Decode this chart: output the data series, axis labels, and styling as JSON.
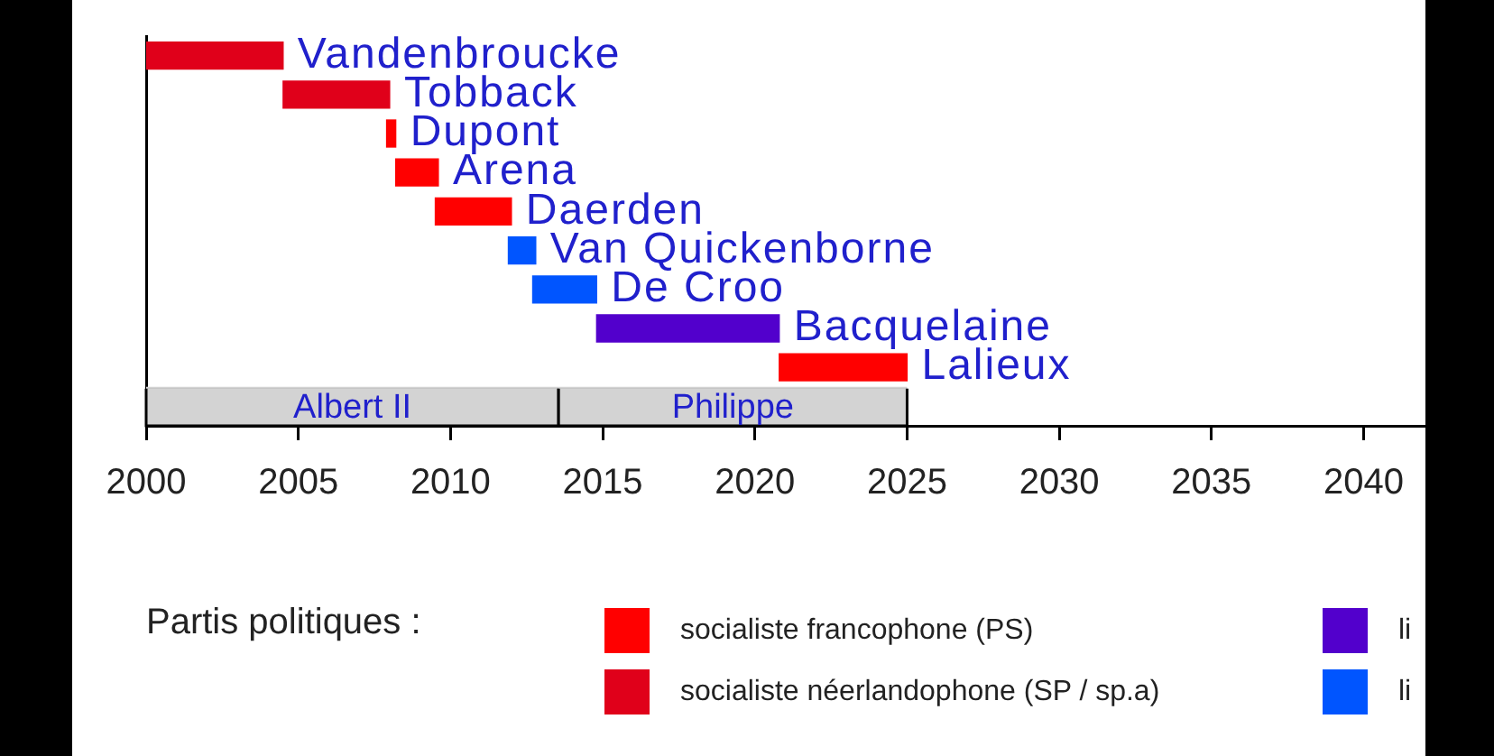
{
  "chart_data": {
    "type": "bar",
    "orientation": "horizontal",
    "categories": [
      "Vandenbroucke",
      "Tobback",
      "Dupont",
      "Arena",
      "Daerden",
      "Van Quickenborne",
      "De Croo",
      "Bacquelaine",
      "Lalieux"
    ],
    "series": [
      {
        "name": "socialiste francophone (PS)",
        "color": "#ff0000",
        "base": [
          null,
          null,
          2007.9,
          2008.2,
          2009.5,
          null,
          null,
          null,
          2020.8
        ],
        "values": [
          null,
          null,
          0.3,
          1.4,
          2.5,
          null,
          null,
          null,
          4.2
        ]
      },
      {
        "name": "socialiste néerlandophone (SP / sp.a)",
        "color": "#e0001a",
        "base": [
          2000,
          2004.5,
          null,
          null,
          null,
          null,
          null,
          null,
          null
        ],
        "values": [
          4.5,
          3.5,
          null,
          null,
          null,
          null,
          null,
          null,
          null
        ]
      },
      {
        "name": "li",
        "color": "#5200cc",
        "base": [
          null,
          null,
          null,
          null,
          null,
          null,
          null,
          2014.8,
          null
        ],
        "values": [
          null,
          null,
          null,
          null,
          null,
          null,
          null,
          6.0,
          null
        ]
      },
      {
        "name": "li",
        "color": "#0055ff",
        "base": [
          null,
          null,
          null,
          null,
          null,
          2011.9,
          2012.7,
          null,
          null
        ],
        "values": [
          null,
          null,
          null,
          null,
          null,
          0.9,
          2.1,
          null,
          null
        ]
      }
    ],
    "xlim": [
      2000,
      2042
    ],
    "xticks": [
      2000,
      2005,
      2010,
      2015,
      2020,
      2025,
      2030,
      2035,
      2040
    ],
    "bands": [
      {
        "axis": "x",
        "from": 2000,
        "to": 2013.55,
        "label": "Albert II",
        "color": "#d3d3d3"
      },
      {
        "axis": "x",
        "from": 2013.55,
        "to": 2025,
        "label": "Philippe",
        "color": "#d3d3d3"
      }
    ],
    "grid": false,
    "legend": "bottom",
    "legend_title": "Partis politiques :"
  }
}
